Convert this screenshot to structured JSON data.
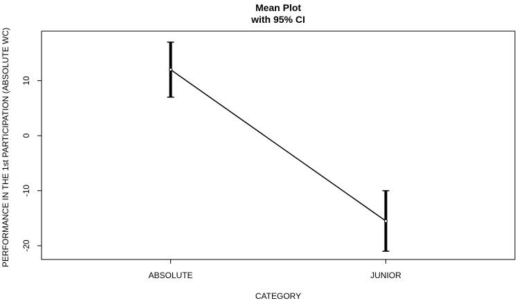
{
  "chart_data": {
    "type": "line",
    "title": "Mean Plot",
    "subtitle": "with 95% CI",
    "xlabel": "CATEGORY",
    "ylabel": "PERFORMANCE IN THE 1st PARTICIPATION (ABSOLUTE WC)",
    "categories": [
      "ABSOLUTE",
      "JUNIOR"
    ],
    "series": [
      {
        "values": [
          12,
          -15.5
        ],
        "ci_lower": [
          7,
          -21
        ],
        "ci_upper": [
          17,
          -10
        ]
      }
    ],
    "yticks": [
      -20,
      -10,
      0,
      10
    ],
    "ylim": [
      -22.5,
      19
    ],
    "grid": false,
    "colors": {
      "line": "#000000",
      "errorbar": "#000000"
    }
  }
}
